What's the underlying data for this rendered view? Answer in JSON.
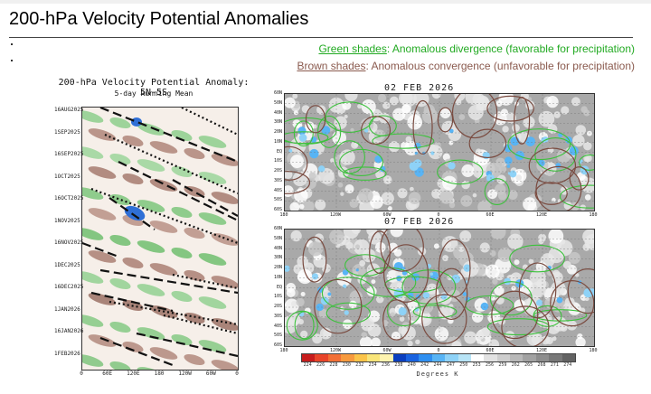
{
  "header": {
    "title": "200-hPa Velocity Potential Anomalies"
  },
  "legend": {
    "green_key": "Green shades",
    "green_text": ": Anomalous divergence (favorable for precipitation)",
    "brown_key": "Brown shades",
    "brown_text": ": Anomalous convergence (unfavorable for precipitation)"
  },
  "hovmoller": {
    "title": "200-hPa Velocity Potential Anomaly: 5N-5S",
    "subtitle": "5-day Running Mean",
    "dates": [
      "16AUG2025",
      "1SEP2025",
      "16SEP2025",
      "1OCT2025",
      "16OCT2025",
      "1NOV2025",
      "16NOV2025",
      "1DEC2025",
      "16DEC2025",
      "1JAN2026",
      "16JAN2026",
      "1FEB2026"
    ],
    "lons": [
      "0",
      "60E",
      "120E",
      "180",
      "120W",
      "60W",
      "0"
    ]
  },
  "maps": [
    {
      "title": "02 FEB 2026"
    },
    {
      "title": "07 FEB 2026"
    }
  ],
  "map_axes": {
    "lats": [
      "60N",
      "50N",
      "40N",
      "30N",
      "20N",
      "10N",
      "EQ",
      "10S",
      "20S",
      "30S",
      "40S",
      "50S",
      "60S"
    ],
    "lons": [
      "180",
      "120W",
      "60W",
      "0",
      "60E",
      "120E",
      "180"
    ]
  },
  "colorbar": {
    "unit": "Degrees K",
    "labels": [
      "224",
      "226",
      "228",
      "230",
      "232",
      "234",
      "236",
      "238",
      "240",
      "242",
      "244",
      "247",
      "250",
      "253",
      "256",
      "259",
      "262",
      "265",
      "268",
      "271",
      "274"
    ],
    "colors": [
      "#c71d1d",
      "#e8452a",
      "#f27036",
      "#f79a3e",
      "#fbc44a",
      "#f9e57a",
      "#fff4b0",
      "#0b3fbf",
      "#1a63e0",
      "#2f8ff0",
      "#58b4f5",
      "#8ed2f7",
      "#b8e4f6",
      "#ffffff",
      "#e2e2e2",
      "#cdcdcd",
      "#b8b8b8",
      "#a2a2a2",
      "#8d8d8d",
      "#787878",
      "#636363"
    ]
  },
  "colors": {
    "green": "#22aa22",
    "brown": "#8a5a4e"
  }
}
